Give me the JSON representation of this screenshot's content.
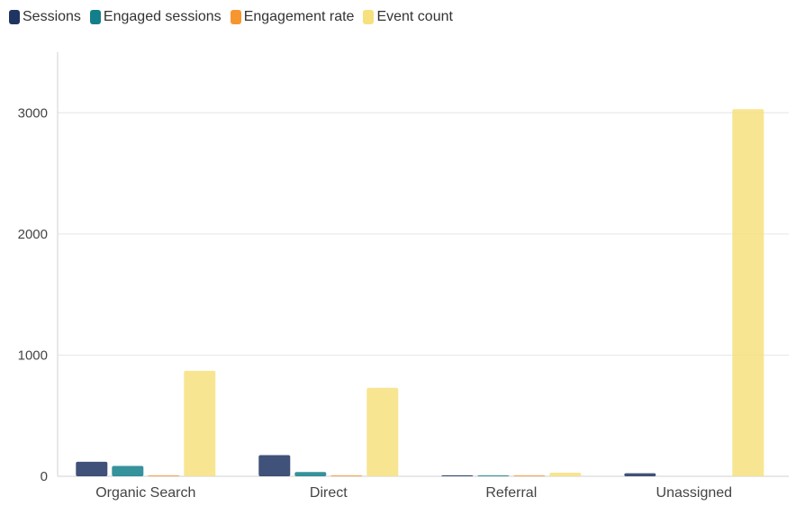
{
  "chart_data": {
    "type": "bar",
    "categories": [
      "Organic Search",
      "Direct",
      "Referral",
      "Unassigned"
    ],
    "series": [
      {
        "name": "Sessions",
        "color": "#1f3461",
        "values": [
          120,
          175,
          8,
          25
        ]
      },
      {
        "name": "Engaged sessions",
        "color": "#137f8a",
        "values": [
          85,
          35,
          5,
          0
        ]
      },
      {
        "name": "Engagement rate",
        "color": "#f7962f",
        "values": [
          0.6,
          0.2,
          0.5,
          0
        ]
      },
      {
        "name": "Event count",
        "color": "#f7e07e",
        "values": [
          870,
          730,
          30,
          3030
        ]
      }
    ],
    "yticks": [
      0,
      1000,
      2000,
      3000
    ],
    "ylim": [
      0,
      3500
    ],
    "grid": true,
    "legend": "top-left"
  }
}
